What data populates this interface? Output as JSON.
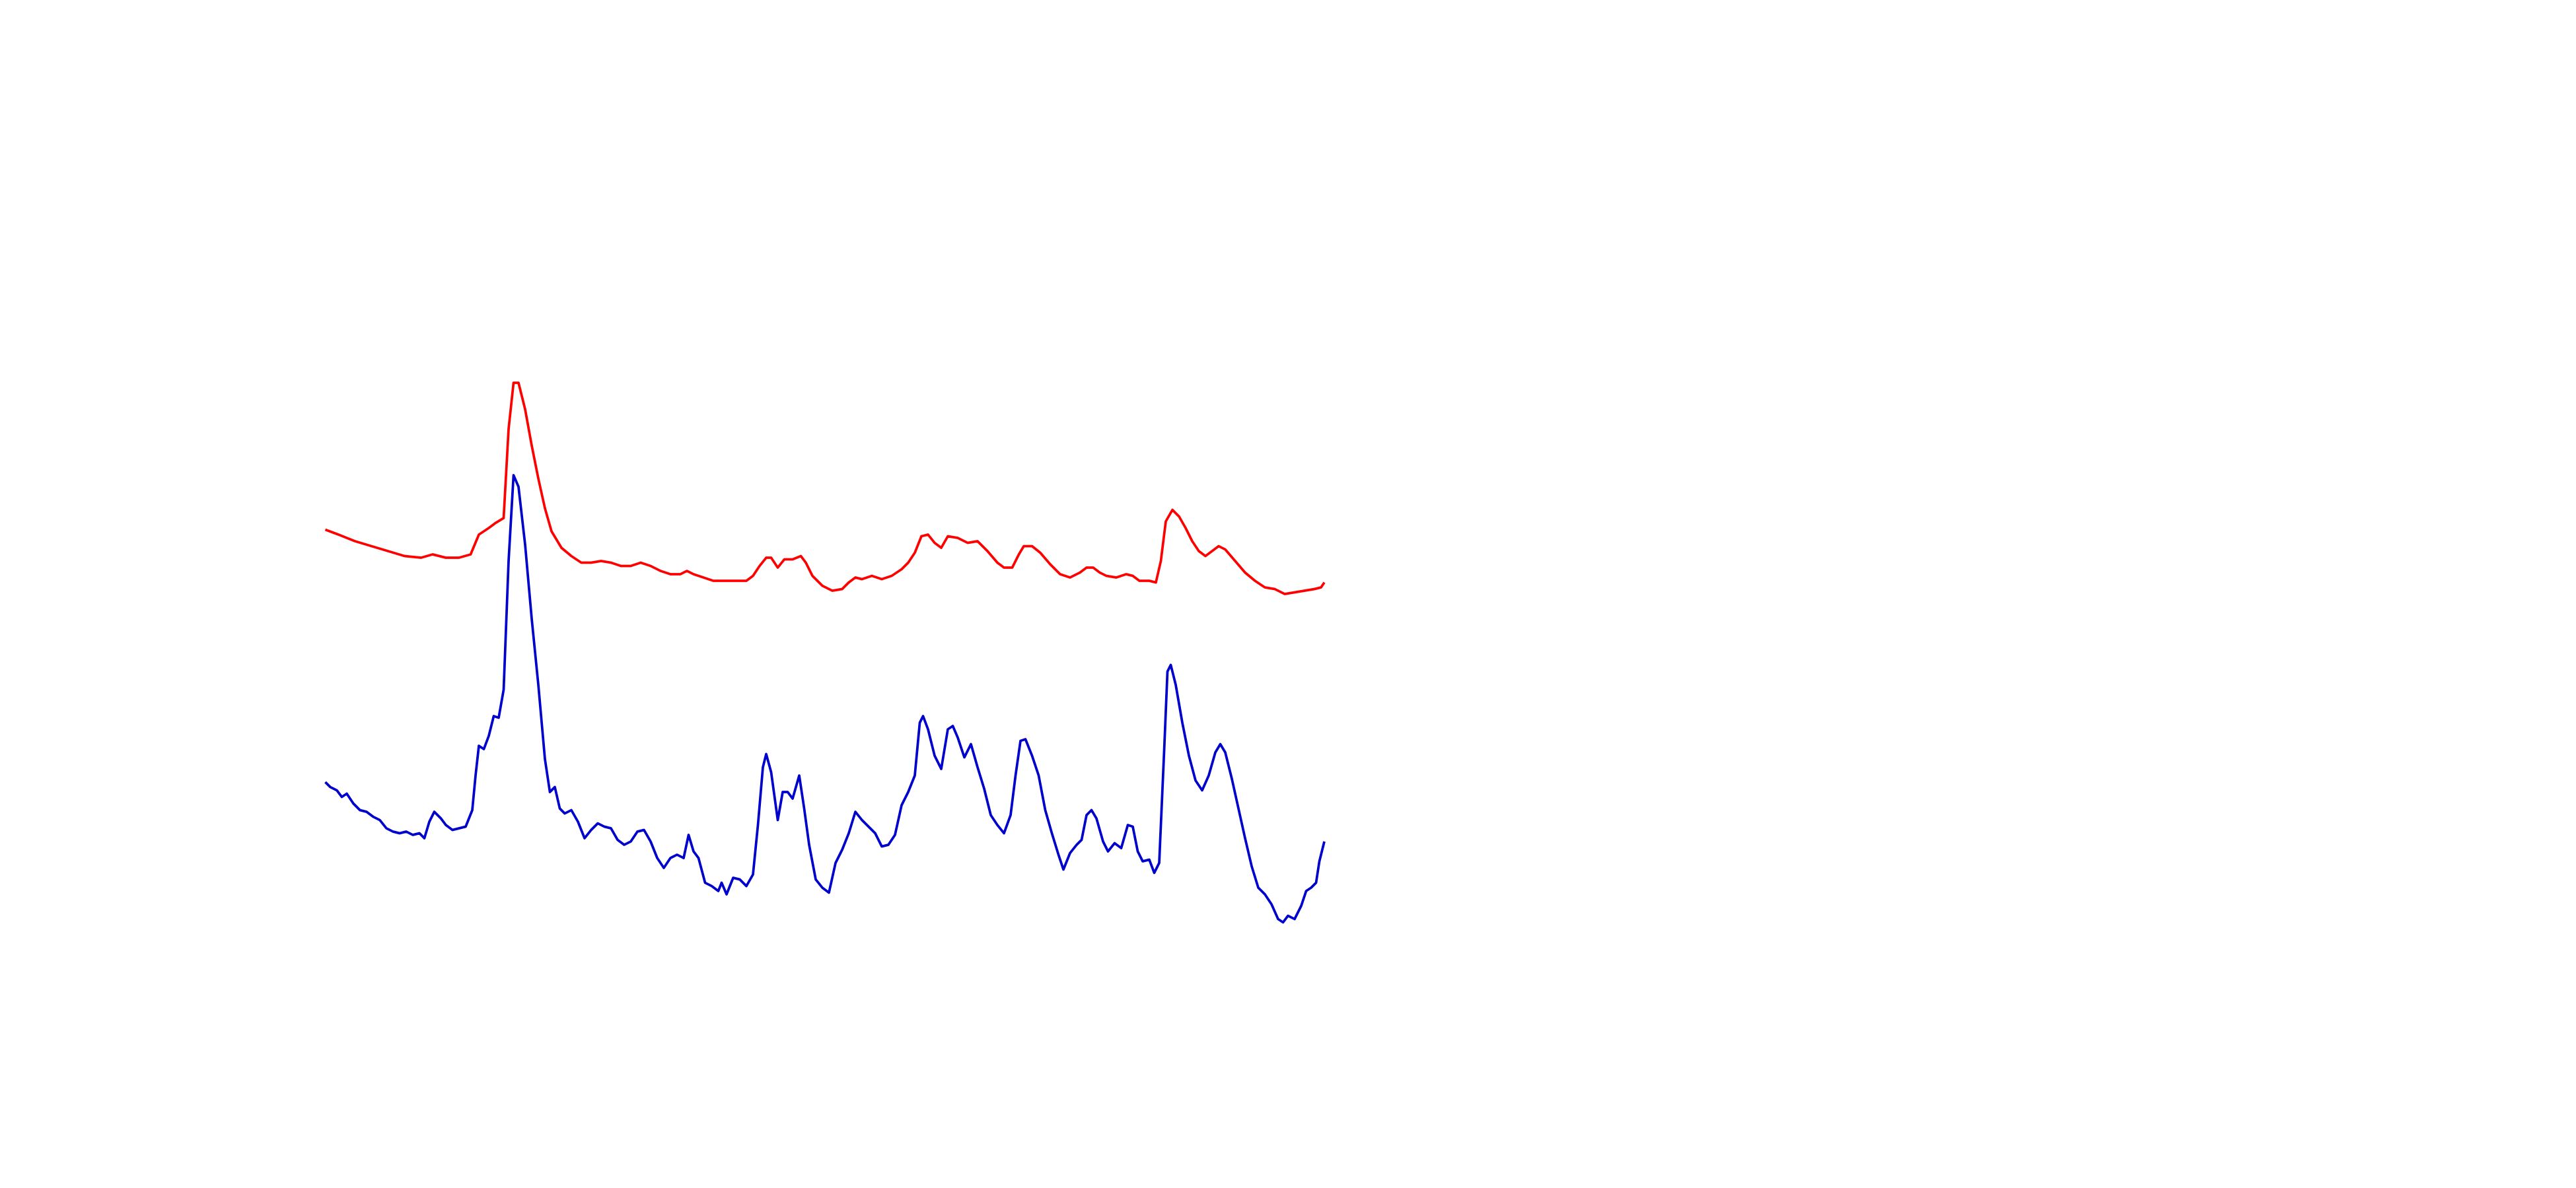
{
  "chart_data": {
    "type": "line",
    "xlim": [
      0,
      1560
    ],
    "ylim": [
      720,
      0
    ],
    "series": [
      {
        "color": "#ff0000",
        "x": [
          197,
          205,
          215,
          225,
          235,
          245,
          255,
          262,
          270,
          278,
          285,
          290,
          296,
          300,
          305,
          308,
          311,
          314,
          318,
          322,
          326,
          330,
          334,
          340,
          346,
          352,
          358,
          364,
          370,
          376,
          382,
          388,
          394,
          400,
          406,
          412,
          416,
          420,
          426,
          432,
          440,
          446,
          452,
          456,
          460,
          464,
          467,
          471,
          475,
          480,
          485,
          488,
          492,
          498,
          504,
          510,
          514,
          518,
          522,
          528,
          534,
          540,
          546,
          550,
          554,
          558,
          562,
          566,
          570,
          574,
          580,
          586,
          592,
          598,
          604,
          608,
          613,
          617,
          620,
          625,
          630,
          636,
          642,
          648,
          654,
          658,
          662,
          666,
          670,
          676,
          682,
          686,
          690,
          696,
          700,
          703,
          706,
          710,
          714,
          718,
          722,
          726,
          730,
          734,
          738,
          742,
          748,
          754,
          760,
          766,
          772,
          778,
          784,
          790,
          796,
          800,
          802
        ],
        "values": [
          321,
          324,
          328,
          331,
          334,
          337,
          338,
          336,
          338,
          338,
          336,
          324,
          320,
          317,
          314,
          260,
          232,
          232,
          248,
          270,
          290,
          308,
          322,
          332,
          337,
          341,
          341,
          340,
          341,
          343,
          343,
          341,
          343,
          346,
          348,
          348,
          346,
          348,
          350,
          352,
          352,
          352,
          352,
          349,
          343,
          338,
          338,
          344,
          339,
          339,
          337,
          341,
          349,
          355,
          358,
          357,
          353,
          350,
          351,
          349,
          351,
          349,
          345,
          341,
          335,
          325,
          324,
          329,
          332,
          325,
          326,
          329,
          328,
          334,
          341,
          344,
          344,
          336,
          331,
          331,
          335,
          342,
          348,
          350,
          347,
          344,
          344,
          347,
          349,
          350,
          348,
          349,
          352,
          352,
          353,
          340,
          316,
          309,
          313,
          320,
          328,
          334,
          337,
          334,
          331,
          333,
          340,
          347,
          352,
          356,
          357,
          360,
          359,
          358,
          357,
          356,
          353
        ]
      },
      {
        "color": "#0000cc",
        "x": [
          197,
          200,
          204,
          207,
          210,
          214,
          218,
          222,
          226,
          230,
          234,
          238,
          242,
          246,
          250,
          254,
          257,
          260,
          263,
          267,
          270,
          274,
          278,
          282,
          286,
          288,
          290,
          293,
          296,
          299,
          302,
          305,
          308,
          311,
          314,
          318,
          322,
          326,
          330,
          333,
          336,
          339,
          342,
          346,
          350,
          354,
          358,
          362,
          366,
          370,
          374,
          378,
          382,
          386,
          390,
          394,
          398,
          402,
          406,
          410,
          414,
          417,
          420,
          423,
          427,
          431,
          435,
          437,
          440,
          444,
          448,
          452,
          456,
          459,
          462,
          464,
          467,
          471,
          474,
          477,
          480,
          484,
          487,
          490,
          494,
          498,
          502,
          506,
          510,
          514,
          518,
          522,
          526,
          530,
          534,
          538,
          542,
          546,
          550,
          554,
          557,
          559,
          562,
          566,
          570,
          574,
          577,
          580,
          584,
          588,
          592,
          596,
          600,
          604,
          608,
          612,
          615,
          618,
          621,
          625,
          629,
          633,
          637,
          641,
          644,
          648,
          652,
          655,
          658,
          661,
          664,
          668,
          671,
          675,
          679,
          683,
          686,
          689,
          692,
          696,
          699,
          702,
          705,
          707,
          709,
          712,
          716,
          720,
          724,
          728,
          732,
          736,
          739,
          742,
          746,
          750,
          754,
          758,
          762,
          766,
          770,
          774,
          777,
          780,
          784,
          788,
          791,
          794,
          797,
          799,
          802
        ],
        "values": [
          474,
          477,
          479,
          483,
          481,
          487,
          491,
          492,
          495,
          497,
          502,
          504,
          505,
          504,
          506,
          505,
          508,
          498,
          492,
          496,
          500,
          503,
          502,
          501,
          491,
          470,
          452,
          454,
          446,
          434,
          435,
          418,
          340,
          288,
          295,
          330,
          375,
          415,
          460,
          480,
          477,
          490,
          493,
          491,
          498,
          508,
          503,
          499,
          501,
          502,
          509,
          512,
          510,
          504,
          503,
          510,
          520,
          526,
          520,
          518,
          520,
          506,
          516,
          520,
          535,
          537,
          540,
          535,
          542,
          532,
          533,
          537,
          530,
          500,
          465,
          457,
          468,
          497,
          480,
          480,
          484,
          470,
          490,
          512,
          533,
          538,
          541,
          523,
          515,
          505,
          492,
          497,
          501,
          505,
          513,
          512,
          506,
          488,
          480,
          470,
          438,
          434,
          442,
          458,
          466,
          442,
          440,
          447,
          459,
          451,
          465,
          478,
          494,
          500,
          505,
          494,
          470,
          449,
          448,
          458,
          470,
          491,
          505,
          518,
          527,
          517,
          512,
          509,
          494,
          491,
          496,
          510,
          516,
          511,
          514,
          500,
          501,
          516,
          522,
          521,
          529,
          523,
          455,
          407,
          403,
          415,
          438,
          458,
          473,
          479,
          470,
          456,
          451,
          456,
          472,
          490,
          508,
          525,
          538,
          542,
          548,
          557,
          559,
          555,
          557,
          549,
          540,
          538,
          535,
          522,
          510
        ]
      }
    ]
  }
}
